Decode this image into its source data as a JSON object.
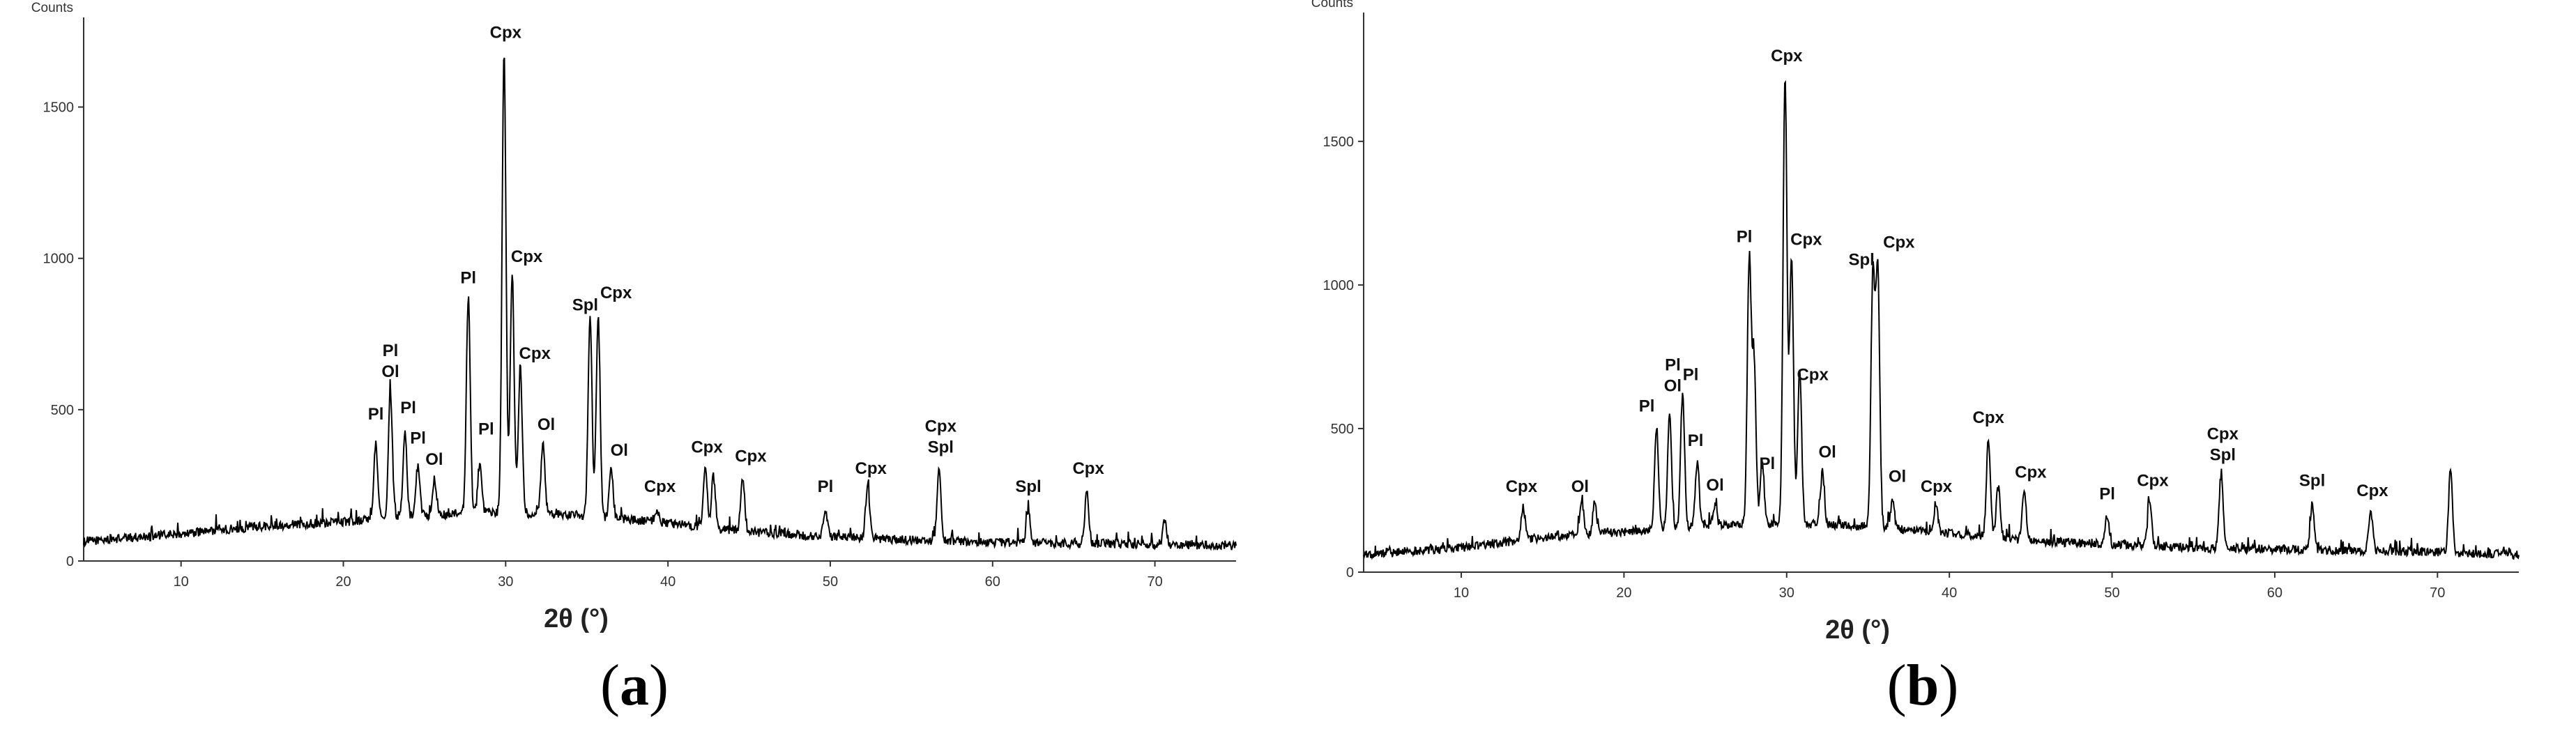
{
  "colors": {
    "line": "#000000",
    "axis": "#333333",
    "background": "#ffffff"
  },
  "panel_labels": {
    "a": "a",
    "b": "b"
  },
  "chart_data": [
    {
      "type": "line",
      "panel": "a",
      "ylabel": "Counts",
      "xlabel": "2θ (°)",
      "xlim": [
        4,
        75
      ],
      "ylim": [
        0,
        1750
      ],
      "x_ticks": [
        10,
        20,
        30,
        40,
        50,
        60,
        70
      ],
      "y_ticks": [
        0,
        500,
        1000,
        1500
      ],
      "grid": false,
      "baseline": [
        [
          4,
          65
        ],
        [
          10,
          90
        ],
        [
          15,
          115
        ],
        [
          20,
          130
        ],
        [
          25,
          150
        ],
        [
          30,
          160
        ],
        [
          35,
          150
        ],
        [
          40,
          125
        ],
        [
          45,
          95
        ],
        [
          50,
          80
        ],
        [
          55,
          70
        ],
        [
          60,
          62
        ],
        [
          65,
          58
        ],
        [
          70,
          55
        ],
        [
          75,
          50
        ]
      ],
      "peaks": [
        {
          "x": 22.0,
          "y": 390
        },
        {
          "x": 22.9,
          "y": 560
        },
        {
          "x": 23.8,
          "y": 420
        },
        {
          "x": 24.6,
          "y": 320
        },
        {
          "x": 25.6,
          "y": 270
        },
        {
          "x": 27.7,
          "y": 870
        },
        {
          "x": 28.4,
          "y": 320
        },
        {
          "x": 29.9,
          "y": 1680
        },
        {
          "x": 30.4,
          "y": 950
        },
        {
          "x": 30.9,
          "y": 640
        },
        {
          "x": 32.3,
          "y": 390
        },
        {
          "x": 35.2,
          "y": 800
        },
        {
          "x": 35.7,
          "y": 810
        },
        {
          "x": 36.5,
          "y": 300
        },
        {
          "x": 39.3,
          "y": 170
        },
        {
          "x": 42.3,
          "y": 310
        },
        {
          "x": 42.8,
          "y": 280
        },
        {
          "x": 44.6,
          "y": 280
        },
        {
          "x": 49.7,
          "y": 170
        },
        {
          "x": 52.3,
          "y": 250
        },
        {
          "x": 56.7,
          "y": 310
        },
        {
          "x": 62.2,
          "y": 170
        },
        {
          "x": 65.8,
          "y": 230
        },
        {
          "x": 70.6,
          "y": 130
        }
      ],
      "annotations": [
        {
          "x": 22.0,
          "y": 440,
          "lines": [
            "Pl"
          ]
        },
        {
          "x": 22.9,
          "y": 580,
          "lines": [
            "Pl",
            "Ol"
          ]
        },
        {
          "x": 24.0,
          "y": 460,
          "lines": [
            "Pl"
          ]
        },
        {
          "x": 24.6,
          "y": 360,
          "lines": [
            "Pl"
          ]
        },
        {
          "x": 25.6,
          "y": 290,
          "lines": [
            "Ol"
          ]
        },
        {
          "x": 27.7,
          "y": 890,
          "lines": [
            "Pl"
          ]
        },
        {
          "x": 28.8,
          "y": 390,
          "lines": [
            "Pl"
          ]
        },
        {
          "x": 30.0,
          "y": 1700,
          "lines": [
            "Cpx"
          ]
        },
        {
          "x": 31.3,
          "y": 960,
          "lines": [
            "Cpx"
          ]
        },
        {
          "x": 31.8,
          "y": 640,
          "lines": [
            "Cpx"
          ]
        },
        {
          "x": 32.5,
          "y": 405,
          "lines": [
            "Ol"
          ]
        },
        {
          "x": 34.9,
          "y": 800,
          "lines": [
            "Spl"
          ]
        },
        {
          "x": 36.8,
          "y": 840,
          "lines": [
            "Cpx"
          ]
        },
        {
          "x": 37.0,
          "y": 320,
          "lines": [
            "Ol"
          ]
        },
        {
          "x": 39.5,
          "y": 200,
          "lines": [
            "Cpx"
          ]
        },
        {
          "x": 42.4,
          "y": 330,
          "lines": [
            "Cpx"
          ]
        },
        {
          "x": 45.1,
          "y": 300,
          "lines": [
            "Cpx"
          ]
        },
        {
          "x": 49.7,
          "y": 200,
          "lines": [
            "Pl"
          ]
        },
        {
          "x": 52.5,
          "y": 260,
          "lines": [
            "Cpx"
          ]
        },
        {
          "x": 56.8,
          "y": 330,
          "lines": [
            "Cpx",
            "Spl"
          ]
        },
        {
          "x": 62.2,
          "y": 200,
          "lines": [
            "Spl"
          ]
        },
        {
          "x": 65.9,
          "y": 260,
          "lines": [
            "Cpx"
          ]
        }
      ]
    },
    {
      "type": "line",
      "panel": "b",
      "ylabel": "Counts",
      "xlabel": "2θ (°)",
      "xlim": [
        4,
        75
      ],
      "ylim": [
        0,
        1900
      ],
      "x_ticks": [
        10,
        20,
        30,
        40,
        50,
        60,
        70
      ],
      "y_ticks": [
        0,
        500,
        1000,
        1500
      ],
      "grid": false,
      "baseline": [
        [
          4,
          60
        ],
        [
          10,
          85
        ],
        [
          15,
          120
        ],
        [
          20,
          140
        ],
        [
          25,
          160
        ],
        [
          30,
          170
        ],
        [
          35,
          160
        ],
        [
          40,
          135
        ],
        [
          45,
          110
        ],
        [
          50,
          95
        ],
        [
          55,
          85
        ],
        [
          60,
          80
        ],
        [
          65,
          75
        ],
        [
          70,
          70
        ],
        [
          75,
          60
        ]
      ],
      "peaks": [
        {
          "x": 13.8,
          "y": 230
        },
        {
          "x": 17.4,
          "y": 250
        },
        {
          "x": 18.2,
          "y": 240
        },
        {
          "x": 22.0,
          "y": 510
        },
        {
          "x": 22.8,
          "y": 540
        },
        {
          "x": 23.6,
          "y": 620
        },
        {
          "x": 24.5,
          "y": 380
        },
        {
          "x": 25.6,
          "y": 230
        },
        {
          "x": 27.7,
          "y": 1080
        },
        {
          "x": 28.0,
          "y": 720
        },
        {
          "x": 28.5,
          "y": 380
        },
        {
          "x": 29.9,
          "y": 1730
        },
        {
          "x": 30.3,
          "y": 1100
        },
        {
          "x": 30.8,
          "y": 700
        },
        {
          "x": 32.2,
          "y": 350
        },
        {
          "x": 35.3,
          "y": 1030
        },
        {
          "x": 35.6,
          "y": 1050
        },
        {
          "x": 36.5,
          "y": 250
        },
        {
          "x": 39.2,
          "y": 220
        },
        {
          "x": 42.4,
          "y": 460
        },
        {
          "x": 43.0,
          "y": 300
        },
        {
          "x": 44.6,
          "y": 290
        },
        {
          "x": 49.7,
          "y": 200
        },
        {
          "x": 52.3,
          "y": 250
        },
        {
          "x": 56.7,
          "y": 340
        },
        {
          "x": 62.3,
          "y": 240
        },
        {
          "x": 65.9,
          "y": 210
        },
        {
          "x": 70.8,
          "y": 350
        }
      ],
      "annotations": [
        {
          "x": 13.7,
          "y": 250,
          "lines": [
            "Cpx"
          ]
        },
        {
          "x": 17.3,
          "y": 250,
          "lines": [
            "Ol"
          ]
        },
        {
          "x": 21.4,
          "y": 530,
          "lines": [
            "Pl"
          ]
        },
        {
          "x": 23.0,
          "y": 600,
          "lines": [
            "Pl",
            "Ol"
          ]
        },
        {
          "x": 24.1,
          "y": 640,
          "lines": [
            "Pl"
          ]
        },
        {
          "x": 24.4,
          "y": 410,
          "lines": [
            "Pl"
          ]
        },
        {
          "x": 25.6,
          "y": 255,
          "lines": [
            "Ol"
          ]
        },
        {
          "x": 27.4,
          "y": 1120,
          "lines": [
            "Pl"
          ]
        },
        {
          "x": 28.8,
          "y": 330,
          "lines": [
            "Pl"
          ]
        },
        {
          "x": 30.0,
          "y": 1750,
          "lines": [
            "Cpx"
          ]
        },
        {
          "x": 31.2,
          "y": 1110,
          "lines": [
            "Cpx"
          ]
        },
        {
          "x": 31.6,
          "y": 640,
          "lines": [
            "Cpx"
          ]
        },
        {
          "x": 32.5,
          "y": 370,
          "lines": [
            "Ol"
          ]
        },
        {
          "x": 34.6,
          "y": 1040,
          "lines": [
            "Spl"
          ]
        },
        {
          "x": 36.9,
          "y": 1100,
          "lines": [
            "Cpx"
          ]
        },
        {
          "x": 36.8,
          "y": 285,
          "lines": [
            "Ol"
          ]
        },
        {
          "x": 39.2,
          "y": 250,
          "lines": [
            "Cpx"
          ]
        },
        {
          "x": 42.4,
          "y": 490,
          "lines": [
            "Cpx"
          ]
        },
        {
          "x": 45.0,
          "y": 300,
          "lines": [
            "Cpx"
          ]
        },
        {
          "x": 49.7,
          "y": 225,
          "lines": [
            "Pl"
          ]
        },
        {
          "x": 52.5,
          "y": 270,
          "lines": [
            "Cpx"
          ]
        },
        {
          "x": 56.8,
          "y": 360,
          "lines": [
            "Cpx",
            "Spl"
          ]
        },
        {
          "x": 62.3,
          "y": 270,
          "lines": [
            "Spl"
          ]
        },
        {
          "x": 66.0,
          "y": 235,
          "lines": [
            "Cpx"
          ]
        }
      ]
    }
  ]
}
